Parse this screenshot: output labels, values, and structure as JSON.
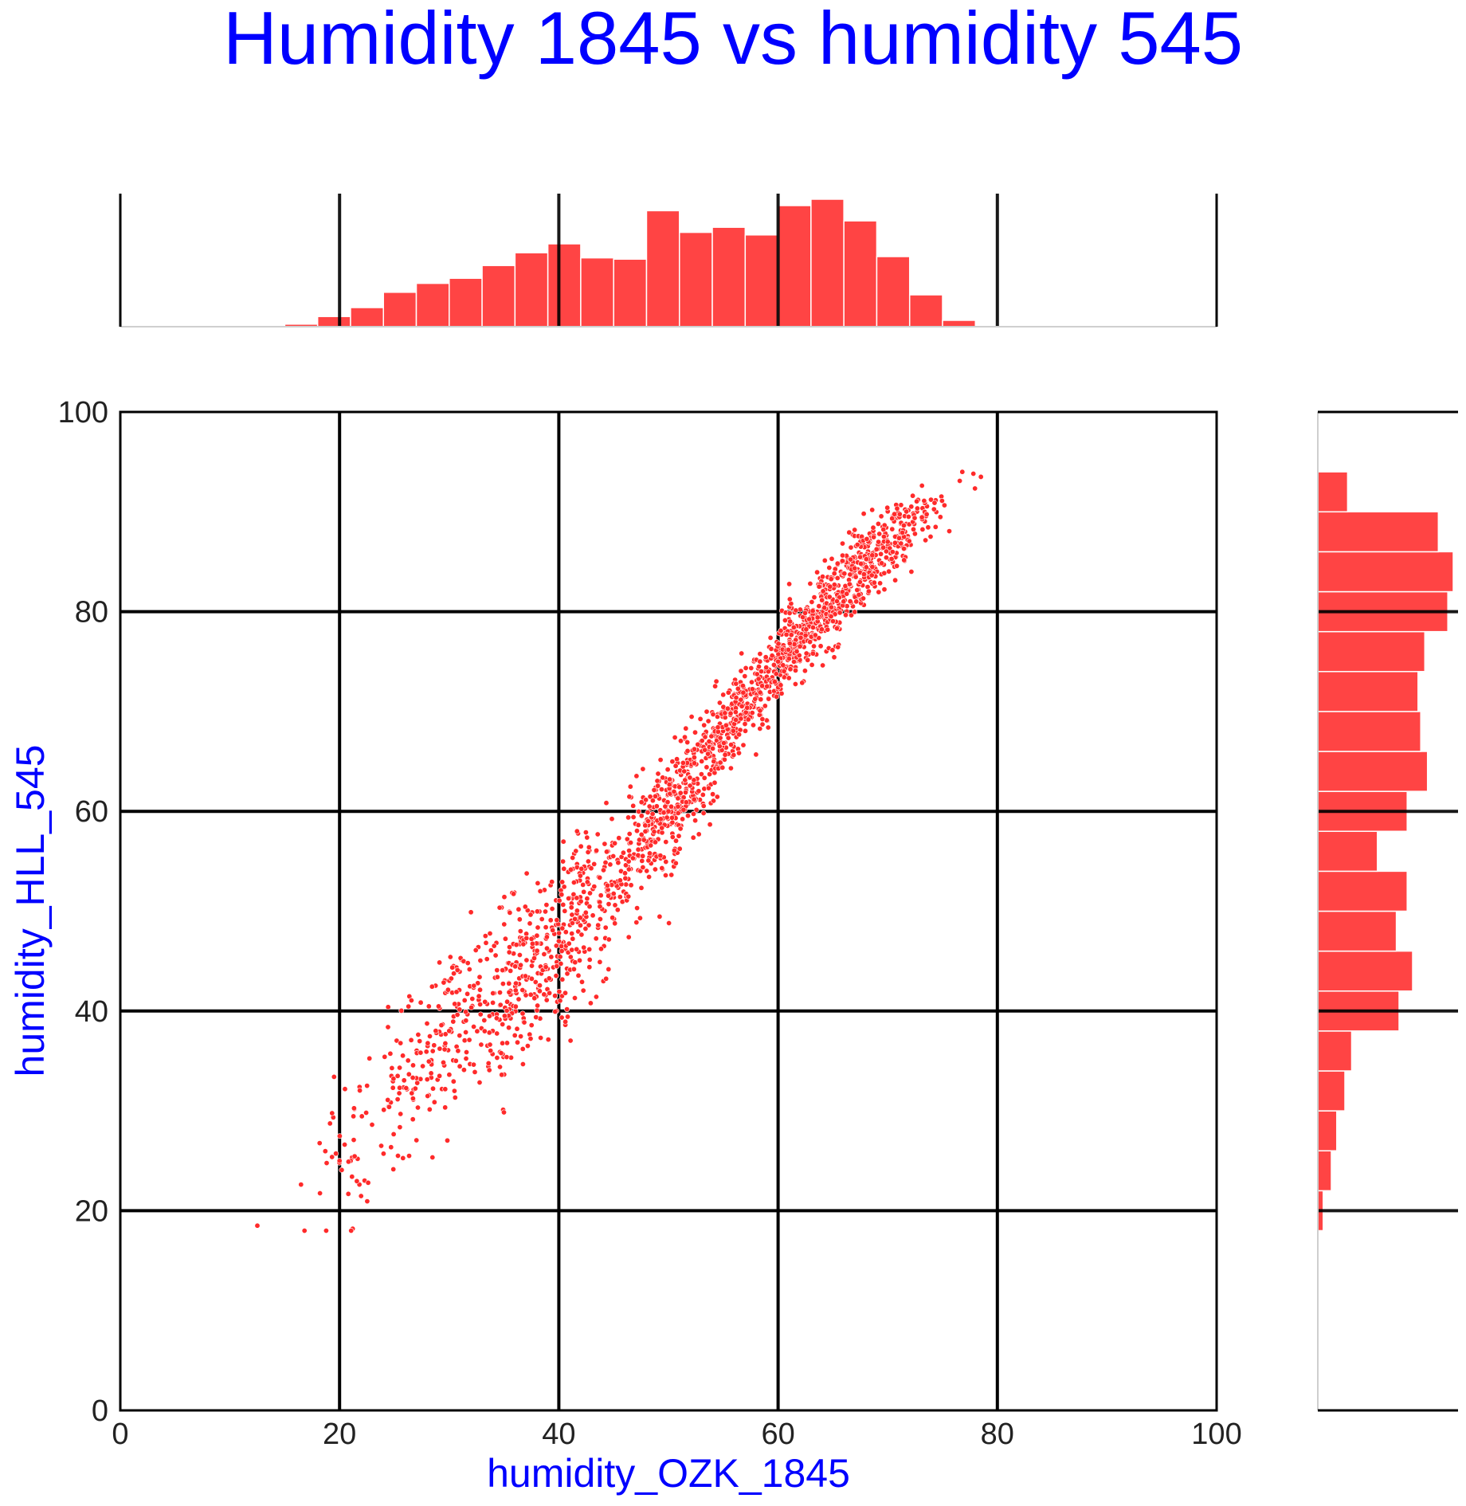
{
  "chart_data": {
    "type": "scatter",
    "title": "Humidity 1845 vs humidity 545",
    "xlabel": "humidity_OZK_1845",
    "ylabel": "humidity_HLL_545",
    "xlim": [
      0,
      100
    ],
    "ylim": [
      0,
      100
    ],
    "xticks": [
      "0",
      "20",
      "40",
      "60",
      "80",
      "100"
    ],
    "yticks": [
      "0",
      "20",
      "40",
      "60",
      "80",
      "100"
    ],
    "grid": true,
    "colors": {
      "title": "#0000ff",
      "labels": "#0000ff",
      "points": "#ff2a2a",
      "bars": "#ff4444",
      "grid": "#000000"
    },
    "scatter_summary": {
      "approx_points": 2000,
      "trend": "strong positive linear relationship; wider spread at low humidity",
      "key_points": [
        {
          "x": 12.5,
          "y": 18.5
        },
        {
          "x": 20,
          "y": 25
        },
        {
          "x": 30,
          "y": 38
        },
        {
          "x": 40,
          "y": 47
        },
        {
          "x": 50,
          "y": 60
        },
        {
          "x": 60,
          "y": 75
        },
        {
          "x": 70,
          "y": 87
        },
        {
          "x": 78.5,
          "y": 93.5
        }
      ]
    },
    "marginal_x_histogram": {
      "bin_edges": [
        15,
        18,
        21,
        24,
        27,
        30,
        33,
        36,
        39,
        42,
        45,
        48,
        51,
        54,
        57,
        60,
        63,
        66,
        69,
        72,
        75,
        78
      ],
      "relative_counts": [
        0.02,
        0.08,
        0.15,
        0.27,
        0.34,
        0.38,
        0.48,
        0.58,
        0.65,
        0.54,
        0.53,
        0.91,
        0.74,
        0.78,
        0.72,
        0.95,
        1.0,
        0.83,
        0.55,
        0.25,
        0.05
      ]
    },
    "marginal_y_histogram": {
      "bin_edges": [
        18,
        22,
        26,
        30,
        34,
        38,
        42,
        46,
        50,
        54,
        58,
        62,
        66,
        70,
        74,
        78,
        82,
        86,
        90,
        94
      ],
      "relative_counts": [
        0.04,
        0.1,
        0.14,
        0.2,
        0.25,
        0.6,
        0.7,
        0.58,
        0.66,
        0.44,
        0.66,
        0.81,
        0.76,
        0.74,
        0.79,
        0.96,
        1.0,
        0.89,
        0.22
      ]
    }
  }
}
